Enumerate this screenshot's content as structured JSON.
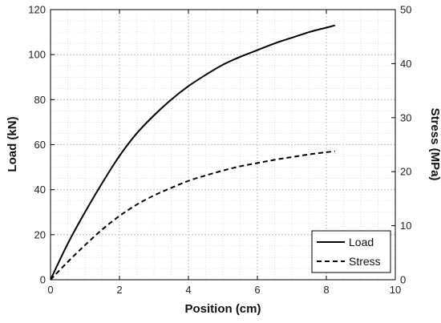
{
  "chart_data": {
    "type": "line",
    "xlabel": "Position (cm)",
    "ylabel_left": "Load (kN)",
    "ylabel_right": "Stress (MPa)",
    "xlim": [
      0,
      10
    ],
    "ylim_left": [
      0,
      120
    ],
    "ylim_right": [
      0,
      50
    ],
    "x_ticks": [
      "0",
      "2",
      "4",
      "6",
      "8",
      "10"
    ],
    "y_left_ticks": [
      "0",
      "20",
      "40",
      "60",
      "80",
      "100",
      "120"
    ],
    "y_right_ticks": [
      "0",
      "10",
      "20",
      "30",
      "40",
      "50"
    ],
    "grid": true,
    "minor_grid": true,
    "legend_position": "bottom-right",
    "series": [
      {
        "name": "Load",
        "axis": "left",
        "style": "solid",
        "color": "#000000",
        "x": [
          0,
          0.5,
          1,
          1.5,
          2,
          2.5,
          3,
          3.5,
          4,
          4.5,
          5,
          5.5,
          6,
          6.5,
          7,
          7.5,
          8,
          8.25
        ],
        "y": [
          0,
          16,
          30,
          43,
          55,
          65,
          73,
          80,
          86,
          91,
          95.5,
          99,
          102,
          105,
          107.5,
          110,
          112,
          113
        ]
      },
      {
        "name": "Stress",
        "axis": "right",
        "style": "dashed",
        "color": "#000000",
        "x": [
          0,
          0.5,
          1,
          1.5,
          2,
          2.5,
          3,
          3.5,
          4,
          4.5,
          5,
          5.5,
          6,
          6.5,
          7,
          7.5,
          8,
          8.25
        ],
        "y": [
          0,
          3.3,
          6.4,
          9.3,
          11.8,
          13.9,
          15.6,
          17.0,
          18.3,
          19.3,
          20.2,
          21.0,
          21.6,
          22.2,
          22.7,
          23.2,
          23.6,
          23.8
        ]
      }
    ]
  }
}
